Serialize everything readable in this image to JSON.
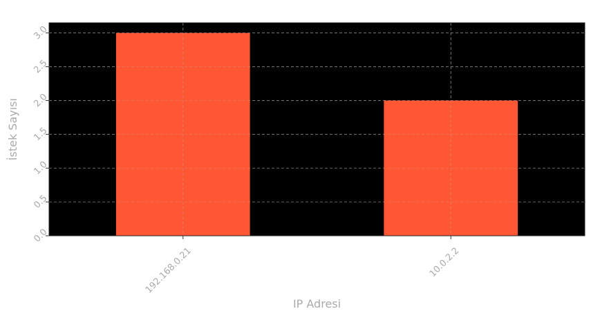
{
  "chart_data": {
    "type": "bar",
    "categories": [
      "192.168.0.21",
      "10.0.2.2"
    ],
    "values": [
      3,
      2
    ],
    "xlabel": "IP Adresi",
    "ylabel": "İstek Sayısı",
    "ylim": [
      0,
      3.15
    ],
    "yticks": [
      "0.0",
      "0.5",
      "1.0",
      "1.5",
      "2.0",
      "2.5",
      "3.0"
    ],
    "grid": true,
    "colors": {
      "bar": "#ff5733",
      "plot_background": "#000000",
      "grid": "#6b6b6b",
      "text": "#aaaaaa"
    }
  }
}
